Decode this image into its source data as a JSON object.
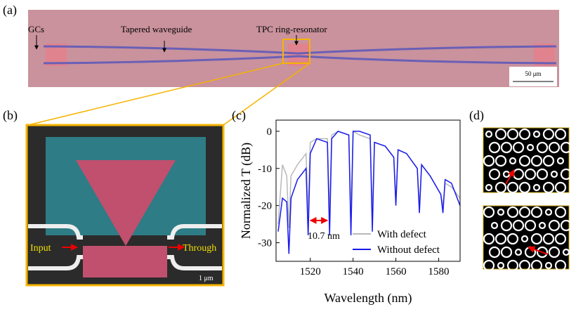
{
  "panel_a": {
    "label": "(a)",
    "gcs": "GCs",
    "tapered": "Tapered waveguide",
    "ring": "TPC ring-resonator",
    "scale": "50 μm"
  },
  "panel_b": {
    "label": "(b)",
    "input": "Input",
    "through": "Through",
    "scale": "1 μm"
  },
  "panel_c": {
    "label": "(c)"
  },
  "panel_d": {
    "label": "(d)"
  },
  "chart_data": {
    "type": "line",
    "x_label": "Wavelength (nm)",
    "y_label": "Normalized T (dB)",
    "annotation": "10.7 nm",
    "xlim": [
      1504,
      1590
    ],
    "ylim": [
      -35,
      3
    ],
    "xticks": [
      1520,
      1540,
      1560,
      1580
    ],
    "yticks": [
      0,
      -10,
      -20,
      -30
    ],
    "x": [
      1505,
      1507,
      1509,
      1510,
      1511,
      1514,
      1518,
      1519,
      1520,
      1523,
      1528,
      1529,
      1530,
      1533,
      1538,
      1539,
      1540,
      1543,
      1548,
      1549,
      1550,
      1555,
      1559,
      1560,
      1561,
      1565,
      1570,
      1571,
      1572,
      1576,
      1581,
      1582,
      1583,
      1586,
      1590
    ],
    "series": [
      {
        "name": "With defect",
        "color": "#b8b8b8",
        "values": [
          -25,
          -9,
          -12,
          -26,
          -12,
          -9,
          -6,
          -22,
          -3,
          -2,
          -2,
          -22,
          -1,
          0,
          -1,
          -22,
          0,
          -1,
          -2,
          -22,
          -3,
          -4,
          -7,
          -18,
          -5,
          -6,
          -10,
          -20,
          -9,
          -12,
          -17,
          -20,
          -14,
          -15,
          -18
        ]
      },
      {
        "name": "Without defect",
        "color": "#1a1aee",
        "values": [
          -27,
          -18,
          -19,
          -33,
          -18,
          -13,
          -10,
          -28,
          -6,
          -2,
          -3,
          -28,
          -2,
          0,
          -1,
          -28,
          0,
          0,
          -1,
          -27,
          -3,
          -4,
          -7,
          -20,
          -5,
          -6,
          -10,
          -22,
          -9,
          -12,
          -17,
          -22,
          -13,
          -14,
          -20
        ]
      }
    ]
  }
}
